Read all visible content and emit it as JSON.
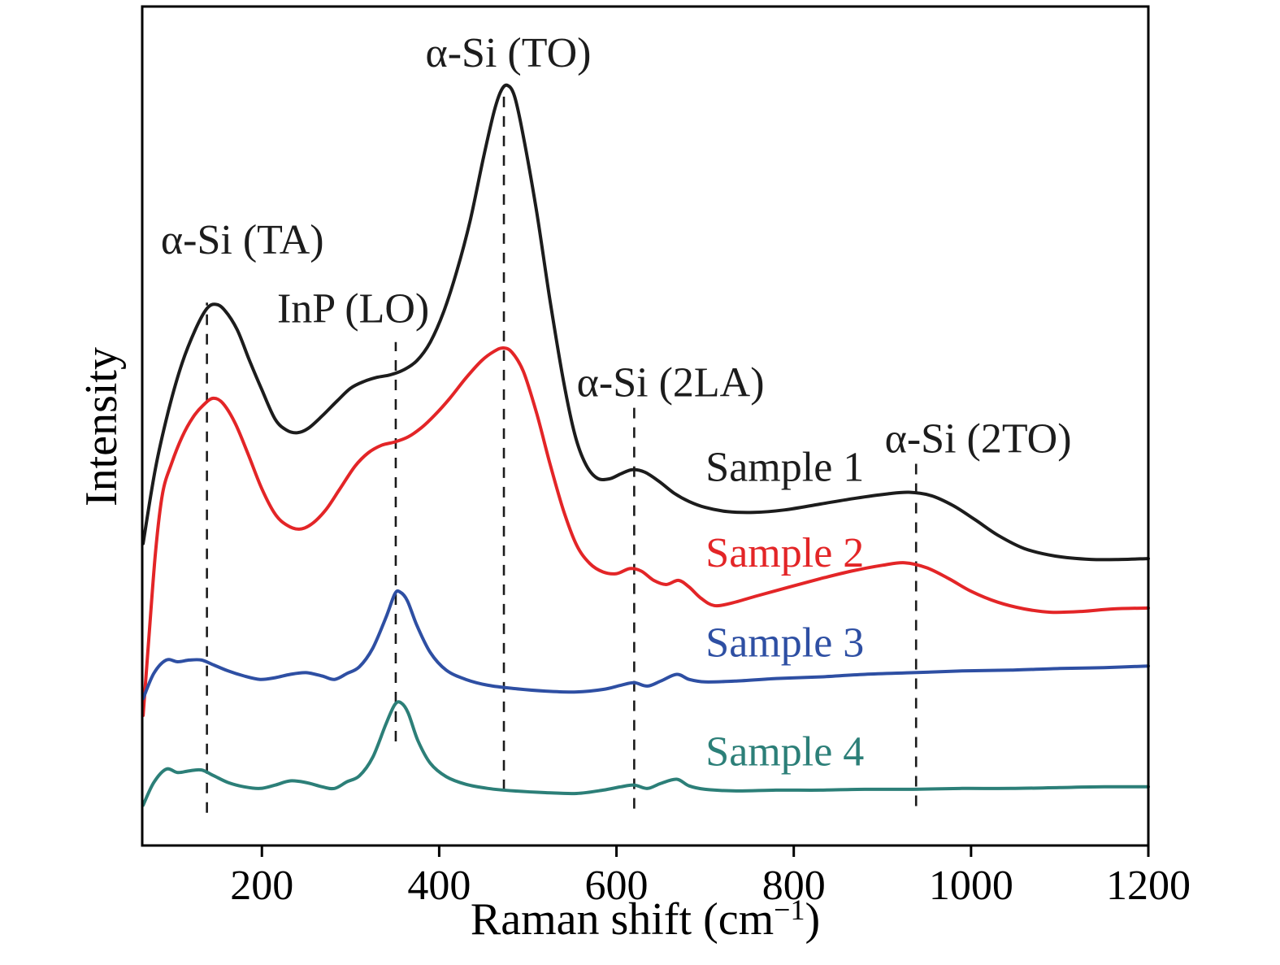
{
  "figure": {
    "background": "#ffffff",
    "axis_color": "#000000",
    "dashed_line_color": "#1a1a1a"
  },
  "chart_data": {
    "type": "line",
    "title": "",
    "xlabel": "Raman shift (cm⁻¹)",
    "xlabel_main": "Raman shift (cm",
    "xlabel_sup": "−1",
    "xlabel_close": ")",
    "ylabel": "Intensity",
    "xlim": [
      65,
      1200
    ],
    "ylim": [
      0,
      1
    ],
    "x_ticks": [
      200,
      400,
      600,
      800,
      1000,
      1200
    ],
    "y_ticks": [],
    "grid": false,
    "legend_position": "inline-labels",
    "series": [
      {
        "name": "Sample 1",
        "color": "#1c1c1c",
        "points": [
          [
            66,
            0.36
          ],
          [
            80,
            0.45
          ],
          [
            95,
            0.52
          ],
          [
            110,
            0.575
          ],
          [
            125,
            0.615
          ],
          [
            138,
            0.64
          ],
          [
            148,
            0.645
          ],
          [
            158,
            0.638
          ],
          [
            172,
            0.615
          ],
          [
            186,
            0.578
          ],
          [
            200,
            0.543
          ],
          [
            215,
            0.508
          ],
          [
            228,
            0.495
          ],
          [
            240,
            0.492
          ],
          [
            252,
            0.497
          ],
          [
            268,
            0.512
          ],
          [
            285,
            0.53
          ],
          [
            300,
            0.545
          ],
          [
            315,
            0.553
          ],
          [
            330,
            0.558
          ],
          [
            345,
            0.561
          ],
          [
            360,
            0.567
          ],
          [
            375,
            0.578
          ],
          [
            390,
            0.6
          ],
          [
            405,
            0.636
          ],
          [
            420,
            0.685
          ],
          [
            435,
            0.745
          ],
          [
            450,
            0.82
          ],
          [
            462,
            0.875
          ],
          [
            470,
            0.9
          ],
          [
            477,
            0.906
          ],
          [
            485,
            0.893
          ],
          [
            495,
            0.845
          ],
          [
            510,
            0.755
          ],
          [
            525,
            0.65
          ],
          [
            540,
            0.555
          ],
          [
            553,
            0.49
          ],
          [
            565,
            0.455
          ],
          [
            578,
            0.438
          ],
          [
            592,
            0.437
          ],
          [
            605,
            0.443
          ],
          [
            618,
            0.448
          ],
          [
            632,
            0.445
          ],
          [
            648,
            0.434
          ],
          [
            665,
            0.42
          ],
          [
            682,
            0.41
          ],
          [
            700,
            0.403
          ],
          [
            725,
            0.398
          ],
          [
            755,
            0.397
          ],
          [
            790,
            0.4
          ],
          [
            830,
            0.407
          ],
          [
            870,
            0.414
          ],
          [
            905,
            0.419
          ],
          [
            930,
            0.421
          ],
          [
            955,
            0.417
          ],
          [
            980,
            0.405
          ],
          [
            1005,
            0.388
          ],
          [
            1030,
            0.37
          ],
          [
            1060,
            0.354
          ],
          [
            1095,
            0.345
          ],
          [
            1135,
            0.341
          ],
          [
            1170,
            0.341
          ],
          [
            1200,
            0.342
          ]
        ]
      },
      {
        "name": "Sample 2",
        "color": "#e32527",
        "points": [
          [
            66,
            0.155
          ],
          [
            72,
            0.24
          ],
          [
            80,
            0.35
          ],
          [
            88,
            0.42
          ],
          [
            98,
            0.455
          ],
          [
            110,
            0.487
          ],
          [
            122,
            0.51
          ],
          [
            134,
            0.525
          ],
          [
            145,
            0.533
          ],
          [
            156,
            0.527
          ],
          [
            170,
            0.503
          ],
          [
            185,
            0.465
          ],
          [
            200,
            0.425
          ],
          [
            215,
            0.395
          ],
          [
            228,
            0.382
          ],
          [
            242,
            0.377
          ],
          [
            256,
            0.383
          ],
          [
            272,
            0.4
          ],
          [
            288,
            0.425
          ],
          [
            305,
            0.452
          ],
          [
            320,
            0.468
          ],
          [
            335,
            0.477
          ],
          [
            350,
            0.481
          ],
          [
            365,
            0.487
          ],
          [
            380,
            0.498
          ],
          [
            395,
            0.513
          ],
          [
            412,
            0.533
          ],
          [
            430,
            0.557
          ],
          [
            448,
            0.578
          ],
          [
            462,
            0.589
          ],
          [
            472,
            0.593
          ],
          [
            482,
            0.588
          ],
          [
            495,
            0.565
          ],
          [
            510,
            0.515
          ],
          [
            525,
            0.455
          ],
          [
            540,
            0.4
          ],
          [
            555,
            0.358
          ],
          [
            570,
            0.336
          ],
          [
            585,
            0.326
          ],
          [
            600,
            0.324
          ],
          [
            615,
            0.33
          ],
          [
            628,
            0.327
          ],
          [
            642,
            0.316
          ],
          [
            656,
            0.311
          ],
          [
            670,
            0.316
          ],
          [
            682,
            0.308
          ],
          [
            695,
            0.295
          ],
          [
            710,
            0.286
          ],
          [
            730,
            0.289
          ],
          [
            760,
            0.298
          ],
          [
            795,
            0.308
          ],
          [
            830,
            0.318
          ],
          [
            865,
            0.327
          ],
          [
            900,
            0.334
          ],
          [
            925,
            0.337
          ],
          [
            950,
            0.331
          ],
          [
            975,
            0.318
          ],
          [
            1000,
            0.303
          ],
          [
            1030,
            0.29
          ],
          [
            1060,
            0.282
          ],
          [
            1090,
            0.278
          ],
          [
            1125,
            0.279
          ],
          [
            1160,
            0.282
          ],
          [
            1200,
            0.283
          ]
        ]
      },
      {
        "name": "Sample 3",
        "color": "#2e4fa3",
        "points": [
          [
            66,
            0.175
          ],
          [
            78,
            0.205
          ],
          [
            92,
            0.221
          ],
          [
            105,
            0.219
          ],
          [
            118,
            0.221
          ],
          [
            132,
            0.221
          ],
          [
            146,
            0.215
          ],
          [
            162,
            0.208
          ],
          [
            180,
            0.202
          ],
          [
            198,
            0.198
          ],
          [
            215,
            0.2
          ],
          [
            232,
            0.204
          ],
          [
            250,
            0.206
          ],
          [
            268,
            0.202
          ],
          [
            282,
            0.198
          ],
          [
            296,
            0.205
          ],
          [
            310,
            0.213
          ],
          [
            325,
            0.235
          ],
          [
            340,
            0.272
          ],
          [
            350,
            0.3
          ],
          [
            356,
            0.302
          ],
          [
            364,
            0.292
          ],
          [
            375,
            0.262
          ],
          [
            390,
            0.23
          ],
          [
            408,
            0.209
          ],
          [
            430,
            0.198
          ],
          [
            455,
            0.191
          ],
          [
            485,
            0.187
          ],
          [
            520,
            0.184
          ],
          [
            555,
            0.183
          ],
          [
            585,
            0.186
          ],
          [
            605,
            0.191
          ],
          [
            620,
            0.194
          ],
          [
            635,
            0.19
          ],
          [
            650,
            0.196
          ],
          [
            668,
            0.204
          ],
          [
            682,
            0.198
          ],
          [
            700,
            0.195
          ],
          [
            735,
            0.196
          ],
          [
            780,
            0.199
          ],
          [
            830,
            0.201
          ],
          [
            880,
            0.204
          ],
          [
            935,
            0.206
          ],
          [
            990,
            0.208
          ],
          [
            1045,
            0.209
          ],
          [
            1100,
            0.211
          ],
          [
            1150,
            0.212
          ],
          [
            1200,
            0.214
          ]
        ]
      },
      {
        "name": "Sample 4",
        "color": "#2c7f78",
        "points": [
          [
            66,
            0.048
          ],
          [
            78,
            0.075
          ],
          [
            92,
            0.091
          ],
          [
            105,
            0.087
          ],
          [
            118,
            0.089
          ],
          [
            132,
            0.09
          ],
          [
            146,
            0.083
          ],
          [
            162,
            0.075
          ],
          [
            180,
            0.07
          ],
          [
            198,
            0.068
          ],
          [
            215,
            0.072
          ],
          [
            232,
            0.077
          ],
          [
            250,
            0.075
          ],
          [
            268,
            0.07
          ],
          [
            282,
            0.068
          ],
          [
            296,
            0.076
          ],
          [
            310,
            0.083
          ],
          [
            325,
            0.105
          ],
          [
            340,
            0.145
          ],
          [
            350,
            0.168
          ],
          [
            357,
            0.17
          ],
          [
            365,
            0.158
          ],
          [
            376,
            0.125
          ],
          [
            390,
            0.098
          ],
          [
            408,
            0.082
          ],
          [
            430,
            0.073
          ],
          [
            455,
            0.068
          ],
          [
            485,
            0.065
          ],
          [
            520,
            0.063
          ],
          [
            555,
            0.062
          ],
          [
            585,
            0.066
          ],
          [
            605,
            0.07
          ],
          [
            620,
            0.072
          ],
          [
            635,
            0.068
          ],
          [
            650,
            0.074
          ],
          [
            668,
            0.079
          ],
          [
            682,
            0.071
          ],
          [
            700,
            0.067
          ],
          [
            735,
            0.065
          ],
          [
            780,
            0.066
          ],
          [
            830,
            0.066
          ],
          [
            880,
            0.067
          ],
          [
            935,
            0.067
          ],
          [
            990,
            0.068
          ],
          [
            1045,
            0.068
          ],
          [
            1100,
            0.069
          ],
          [
            1150,
            0.07
          ],
          [
            1200,
            0.07
          ]
        ]
      }
    ],
    "dashed_lines": [
      {
        "id": "ta",
        "x": 138,
        "y1": 0.039,
        "y2": 0.647
      },
      {
        "id": "lo",
        "x": 351,
        "y1": 0.124,
        "y2": 0.6
      },
      {
        "id": "to",
        "x": 473,
        "y1": 0.066,
        "y2": 0.899
      },
      {
        "id": "2la",
        "x": 620,
        "y1": 0.044,
        "y2": 0.525
      },
      {
        "id": "2to",
        "x": 938,
        "y1": 0.047,
        "y2": 0.463
      }
    ],
    "annotations": [
      {
        "id": "peak-a-si-ta",
        "text": "α-Si (TA)",
        "x": 178,
        "y": 0.717,
        "color": "#1c1c1c"
      },
      {
        "id": "peak-inp-lo",
        "text": "InP (LO)",
        "x": 303,
        "y": 0.635,
        "color": "#1c1c1c"
      },
      {
        "id": "peak-a-si-to",
        "text": "α-Si (TO)",
        "x": 478,
        "y": 0.94,
        "color": "#1c1c1c"
      },
      {
        "id": "peak-a-si-2la",
        "text": "α-Si (2LA)",
        "x": 661,
        "y": 0.547,
        "color": "#1c1c1c"
      },
      {
        "id": "peak-a-si-2to",
        "text": "α-Si (2TO)",
        "x": 1008,
        "y": 0.48,
        "color": "#1c1c1c"
      },
      {
        "id": "label-sample-1",
        "text": "Sample 1",
        "x": 790,
        "y": 0.446,
        "color": "#1c1c1c"
      },
      {
        "id": "label-sample-2",
        "text": "Sample 2",
        "x": 790,
        "y": 0.344,
        "color": "#e32527"
      },
      {
        "id": "label-sample-3",
        "text": "Sample 3",
        "x": 790,
        "y": 0.237,
        "color": "#2e4fa3"
      },
      {
        "id": "label-sample-4",
        "text": "Sample 4",
        "x": 790,
        "y": 0.107,
        "color": "#2c7f78"
      }
    ]
  }
}
